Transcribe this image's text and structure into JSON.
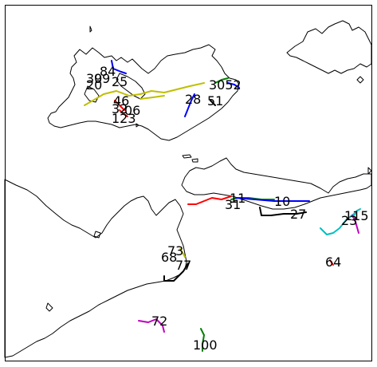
{
  "labels": [
    {
      "id": "l-84",
      "text": "84"
    },
    {
      "id": "l-30a",
      "text": "30"
    },
    {
      "id": "l-20",
      "text": "20"
    },
    {
      "id": "l-99",
      "text": "99"
    },
    {
      "id": "l-25",
      "text": "25"
    },
    {
      "id": "l-3052",
      "text": "3052"
    },
    {
      "id": "l-46",
      "text": "46"
    },
    {
      "id": "l-28",
      "text": "28"
    },
    {
      "id": "l-51",
      "text": "51"
    },
    {
      "id": "l-32",
      "text": "32"
    },
    {
      "id": "l-06",
      "text": "06"
    },
    {
      "id": "l-123",
      "text": "123"
    },
    {
      "id": "l-11a",
      "text": "11"
    },
    {
      "id": "l-31",
      "text": "31"
    },
    {
      "id": "l-10",
      "text": "10"
    },
    {
      "id": "l-27",
      "text": "27"
    },
    {
      "id": "l-115",
      "text": "115"
    },
    {
      "id": "l-23",
      "text": "23"
    },
    {
      "id": "l-73",
      "text": "73"
    },
    {
      "id": "l-68",
      "text": "68"
    },
    {
      "id": "l-77",
      "text": "77"
    },
    {
      "id": "l-64",
      "text": "64"
    },
    {
      "id": "l-72",
      "text": "72"
    },
    {
      "id": "l-100",
      "text": "100"
    }
  ],
  "track_colors": {
    "blue": "#0000ff",
    "green": "#008000",
    "red": "#ff0000",
    "yellow": "#bfbf00",
    "black": "#000000",
    "cyan": "#00bfbf",
    "magenta": "#bf00bf"
  }
}
